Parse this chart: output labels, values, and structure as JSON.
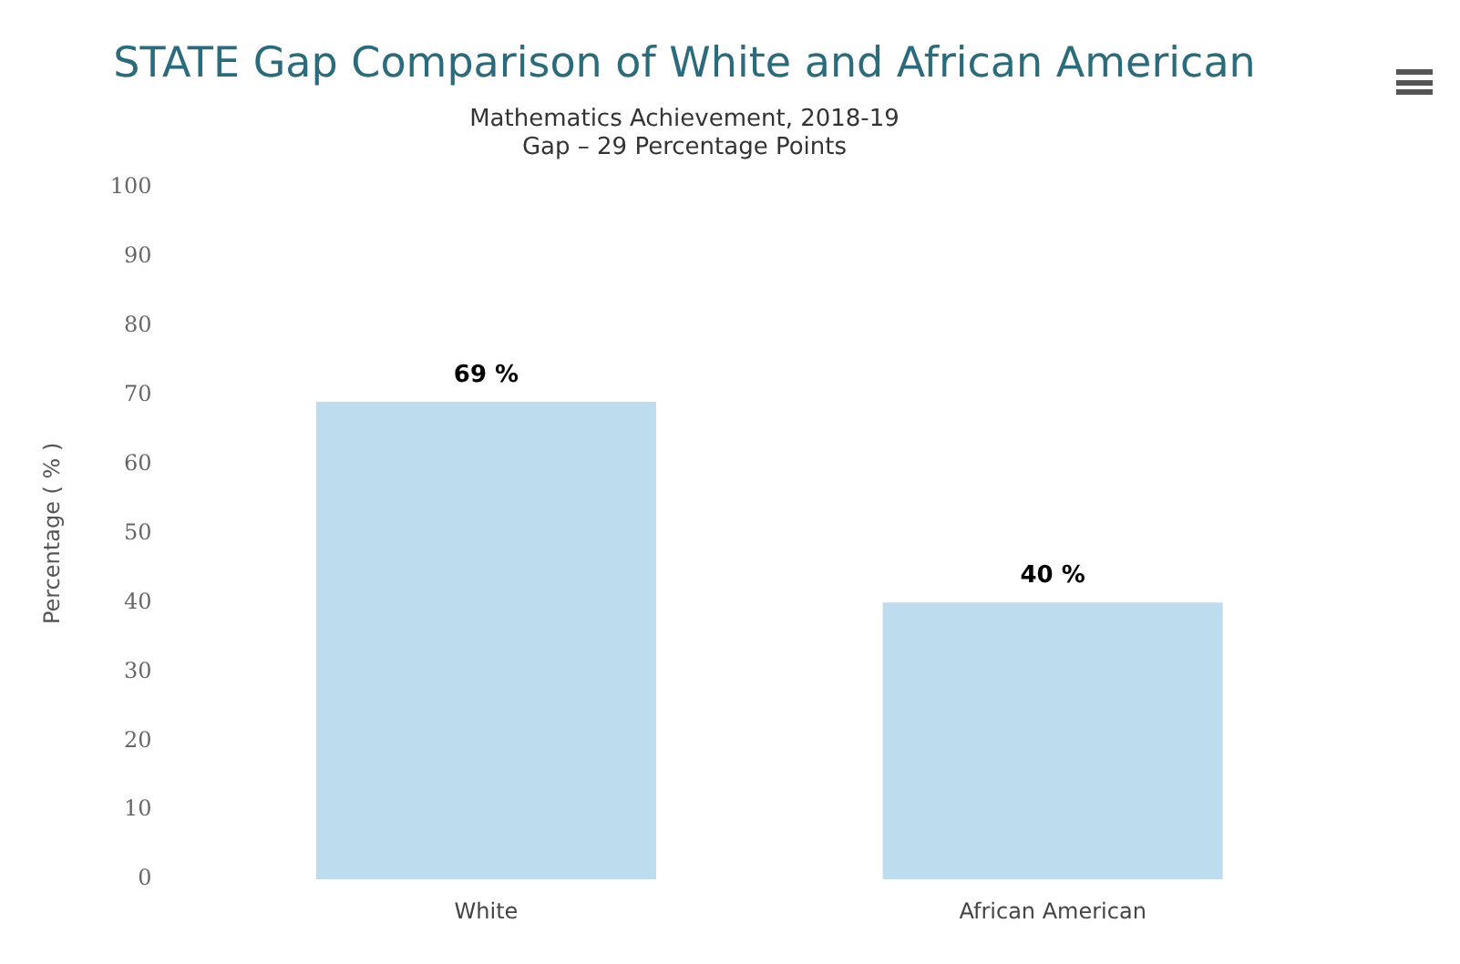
{
  "chart_data": {
    "type": "bar",
    "title": "STATE Gap Comparison of White and African American",
    "subtitle": "Mathematics Achievement, 2018-19\nGap – 29 Percentage Points",
    "ylabel": "Percentage ( % )",
    "categories": [
      "White",
      "African American"
    ],
    "values": [
      69,
      40
    ],
    "value_labels": [
      "69 %",
      "40 %"
    ],
    "color": "#bddcee",
    "ylim": [
      0,
      100
    ],
    "yticks": [
      0,
      10,
      20,
      30,
      40,
      50,
      60,
      70,
      80,
      90,
      100
    ],
    "grid": false,
    "legend": false
  }
}
